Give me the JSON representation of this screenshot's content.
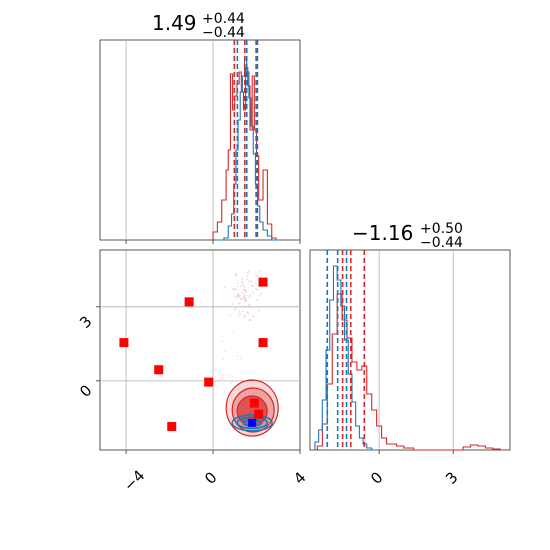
{
  "chart_data": {
    "type": "corner",
    "series": [
      {
        "name": "",
        "color": "#d62728"
      },
      {
        "name": "",
        "color": "#1f77b4"
      }
    ],
    "params": [
      {
        "title": "1.49",
        "plus": "+0.44",
        "minus": "−0.44"
      },
      {
        "title": "−1.16",
        "plus": "+0.50",
        "minus": "−0.44"
      }
    ],
    "panels": {
      "hist_x": {
        "xlim": [
          -5.2,
          4.0
        ],
        "grid_x": [
          -4,
          0
        ],
        "red_quantiles": [
          0.98,
          1.46,
          2.04
        ],
        "blue_quantiles": [
          1.12,
          1.55,
          1.98
        ],
        "red_steps": [
          [
            0.0,
            0.04
          ],
          [
            0.2,
            0.09
          ],
          [
            0.4,
            0.2
          ],
          [
            0.6,
            0.35
          ],
          [
            0.7,
            0.45
          ],
          [
            0.8,
            0.83
          ],
          [
            0.9,
            0.65
          ],
          [
            1.0,
            0.72
          ],
          [
            1.1,
            0.78
          ],
          [
            1.2,
            0.84
          ],
          [
            1.3,
            0.74
          ],
          [
            1.4,
            0.65
          ],
          [
            1.5,
            0.86
          ],
          [
            1.6,
            0.77
          ],
          [
            1.7,
            0.55
          ],
          [
            1.8,
            0.82
          ],
          [
            1.9,
            0.55
          ],
          [
            2.0,
            0.42
          ],
          [
            2.1,
            0.2
          ],
          [
            2.3,
            0.35
          ],
          [
            2.5,
            0.08
          ],
          [
            2.7,
            0.01
          ],
          [
            2.9,
            0.0
          ]
        ],
        "blue_steps": [
          [
            0.2,
            0.0
          ],
          [
            0.5,
            0.01
          ],
          [
            0.7,
            0.07
          ],
          [
            0.85,
            0.13
          ],
          [
            0.95,
            0.28
          ],
          [
            1.05,
            0.45
          ],
          [
            1.15,
            0.6
          ],
          [
            1.25,
            0.74
          ],
          [
            1.35,
            0.82
          ],
          [
            1.45,
            0.9
          ],
          [
            1.55,
            0.84
          ],
          [
            1.65,
            0.71
          ],
          [
            1.75,
            0.57
          ],
          [
            1.85,
            0.43
          ],
          [
            1.95,
            0.28
          ],
          [
            2.05,
            0.17
          ],
          [
            2.15,
            0.09
          ],
          [
            2.3,
            0.05
          ],
          [
            2.5,
            0.02
          ],
          [
            2.7,
            0.0
          ],
          [
            2.9,
            0.0
          ]
        ]
      },
      "hist_y": {
        "xlim": [
          -2.8,
          5.3
        ],
        "grid_x": [
          0,
          3
        ],
        "red_quantiles": [
          -1.48,
          -1.15,
          -0.6
        ],
        "blue_quantiles": [
          -2.1,
          -1.68,
          -1.32
        ],
        "red_steps": [
          [
            -2.5,
            0.02
          ],
          [
            -2.3,
            0.13
          ],
          [
            -2.1,
            0.33
          ],
          [
            -1.9,
            0.58
          ],
          [
            -1.7,
            0.78
          ],
          [
            -1.5,
            0.65
          ],
          [
            -1.3,
            0.56
          ],
          [
            -1.1,
            0.44
          ],
          [
            -0.9,
            0.4
          ],
          [
            -0.7,
            0.42
          ],
          [
            -0.5,
            0.28
          ],
          [
            -0.3,
            0.2
          ],
          [
            -0.1,
            0.12
          ],
          [
            0.1,
            0.06
          ],
          [
            0.3,
            0.03
          ],
          [
            0.5,
            0.03
          ],
          [
            0.7,
            0.02
          ],
          [
            1.0,
            0.01
          ],
          [
            1.4,
            0.0
          ],
          [
            3.4,
            0.015
          ],
          [
            3.7,
            0.025
          ],
          [
            4.0,
            0.02
          ],
          [
            4.3,
            0.01
          ],
          [
            4.6,
            0.005
          ],
          [
            4.9,
            0.0
          ]
        ],
        "blue_steps": [
          [
            -2.6,
            0.04
          ],
          [
            -2.45,
            0.1
          ],
          [
            -2.3,
            0.25
          ],
          [
            -2.15,
            0.5
          ],
          [
            -2.0,
            0.75
          ],
          [
            -1.85,
            0.92
          ],
          [
            -1.7,
            0.85
          ],
          [
            -1.55,
            0.72
          ],
          [
            -1.4,
            0.55
          ],
          [
            -1.25,
            0.38
          ],
          [
            -1.1,
            0.24
          ],
          [
            -0.95,
            0.12
          ],
          [
            -0.8,
            0.06
          ],
          [
            -0.65,
            0.03
          ],
          [
            -0.5,
            0.01
          ],
          [
            -0.3,
            0.0
          ]
        ]
      },
      "scatter_2d": {
        "xlim": [
          -5.2,
          4.0
        ],
        "ylim": [
          -2.8,
          5.3
        ],
        "grid_x": [
          -4,
          0
        ],
        "grid_y": [
          3,
          0
        ],
        "red_markers": [
          [
            -4.1,
            1.55
          ],
          [
            -2.5,
            0.45
          ],
          [
            -1.1,
            3.2
          ],
          [
            -0.2,
            -0.05
          ],
          [
            2.3,
            4.0
          ],
          [
            2.3,
            1.55
          ],
          [
            -1.9,
            -1.85
          ],
          [
            1.9,
            -0.9
          ],
          [
            2.1,
            -1.35
          ]
        ],
        "blue_markers": [
          [
            1.8,
            -1.7
          ]
        ],
        "red_contour_centers": [
          [
            1.8,
            -1.1
          ]
        ],
        "blue_contour_centers": [
          [
            1.8,
            -1.7
          ]
        ]
      }
    },
    "tick_labels": {
      "bottom_x": [
        "−4",
        "0",
        "4"
      ],
      "bottom_y_hist": [
        "0",
        "3"
      ],
      "left_y": [
        "3",
        "0"
      ]
    }
  }
}
